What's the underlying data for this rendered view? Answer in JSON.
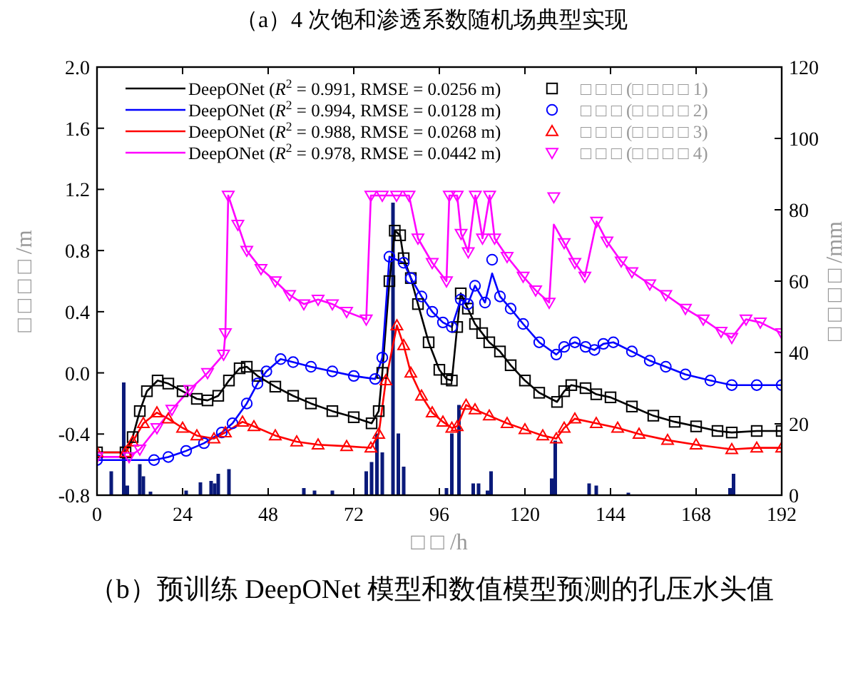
{
  "chart_data": {
    "type": "line",
    "title": "（a）4 次饱和渗透系数随机场典型实现",
    "xlabel": "□ □ /h",
    "ylabel": "□ □ □ □ /m",
    "y2label": "□ □ □ □ /mm",
    "annotations": [
      "（b）预训练 DeepONet 模型和数值模型预测的孔压水头值"
    ],
    "xlim": [
      0,
      192
    ],
    "xticks": [
      0,
      24,
      48,
      72,
      96,
      120,
      144,
      168,
      192
    ],
    "ylim": [
      -0.8,
      2.0
    ],
    "yticks": [
      -0.8,
      -0.4,
      {
        "value": 0,
        "label": "0.0"
      },
      0.4,
      0.8,
      1.2,
      1.6,
      {
        "value": 2,
        "label": "2.0"
      }
    ],
    "y2lim": [
      0,
      120
    ],
    "y2ticks": [
      0,
      20,
      40,
      60,
      80,
      100,
      120
    ],
    "legend": "top",
    "line_style": "solid",
    "series": [
      {
        "type": "bar",
        "axis": "y2",
        "color": "#0a1a7a",
        "x": [
          4,
          7.5,
          8.5,
          12,
          13,
          15,
          25,
          29,
          32,
          33,
          34,
          37,
          58,
          61,
          66,
          75.5,
          77,
          78.5,
          80,
          83,
          84.5,
          86,
          98,
          99.5,
          101.5,
          105.5,
          107,
          109.5,
          110.5,
          127.5,
          128.5,
          138,
          140,
          149,
          177.5,
          178.5
        ],
        "values": [
          6.7,
          31.6,
          2.7,
          8.7,
          5.3,
          1,
          1.3,
          3.6,
          4,
          3.3,
          6,
          7.3,
          2,
          1.3,
          1.3,
          6.7,
          9.3,
          17.3,
          12,
          82,
          17.3,
          8,
          2,
          17.3,
          25.3,
          3.3,
          3.3,
          1.3,
          6.7,
          4.7,
          15.3,
          3.3,
          2.7,
          0.7,
          2,
          6
        ]
      },
      {
        "name": "DeepONet (*R*$^{2}$ = 0.991, RMSE = 0.0256 m)",
        "color": "#000000",
        "x": [
          0,
          8,
          10,
          12,
          14,
          17,
          20,
          24,
          28,
          31,
          34,
          37,
          40,
          42,
          45,
          50,
          55,
          60,
          66,
          72,
          77,
          79,
          80,
          82,
          83.5,
          85,
          86,
          88,
          90,
          93,
          96,
          98,
          99.5,
          101,
          102,
          104,
          106,
          108,
          110,
          113,
          116,
          120,
          124,
          129,
          131,
          133,
          137,
          140,
          144,
          150,
          156,
          162,
          168,
          174,
          178,
          185,
          192
        ],
        "values": [
          -0.52,
          -0.52,
          -0.42,
          -0.25,
          -0.12,
          -0.05,
          -0.07,
          -0.12,
          -0.17,
          -0.18,
          -0.15,
          -0.05,
          0.03,
          0.04,
          -0.02,
          -0.09,
          -0.15,
          -0.2,
          -0.25,
          -0.29,
          -0.33,
          -0.25,
          0.0,
          0.6,
          0.93,
          0.9,
          0.75,
          0.62,
          0.45,
          0.2,
          0.02,
          -0.04,
          -0.05,
          0.3,
          0.52,
          0.42,
          0.32,
          0.26,
          0.2,
          0.14,
          0.05,
          -0.05,
          -0.13,
          -0.19,
          -0.12,
          -0.08,
          -0.1,
          -0.14,
          -0.16,
          -0.22,
          -0.28,
          -0.32,
          -0.35,
          -0.38,
          -0.39,
          -0.38,
          -0.38
        ]
      },
      {
        "type": "scatter",
        "marker": "square",
        "name": "□ □ □ (□ □ □ □ 1)",
        "color": "#000000",
        "x": [
          0,
          8,
          10,
          12,
          14,
          17,
          20,
          24,
          28,
          31,
          34,
          37,
          40,
          42,
          45,
          50,
          55,
          60,
          66,
          72,
          77,
          79,
          80,
          82,
          83.5,
          85,
          86,
          88,
          90,
          93,
          96,
          98,
          99.5,
          101,
          102,
          104,
          106,
          108,
          110,
          113,
          116,
          120,
          124,
          129,
          131,
          133,
          137,
          140,
          144,
          150,
          156,
          162,
          168,
          174,
          178,
          185,
          192
        ],
        "values": [
          -0.52,
          -0.52,
          -0.42,
          -0.25,
          -0.12,
          -0.05,
          -0.07,
          -0.12,
          -0.17,
          -0.18,
          -0.15,
          -0.05,
          0.03,
          0.04,
          -0.02,
          -0.09,
          -0.15,
          -0.2,
          -0.25,
          -0.29,
          -0.33,
          -0.25,
          0.0,
          0.6,
          0.93,
          0.9,
          0.75,
          0.62,
          0.45,
          0.2,
          0.02,
          -0.04,
          -0.05,
          0.3,
          0.52,
          0.42,
          0.32,
          0.26,
          0.2,
          0.14,
          0.05,
          -0.05,
          -0.13,
          -0.19,
          -0.12,
          -0.08,
          -0.1,
          -0.14,
          -0.16,
          -0.22,
          -0.28,
          -0.32,
          -0.35,
          -0.38,
          -0.39,
          -0.38,
          -0.38
        ]
      },
      {
        "name": "DeepONet (*R*$^{2}$ = 0.994, RMSE = 0.0128 m)",
        "color": "#0000ff",
        "x": [
          0,
          16,
          20,
          25,
          30,
          35,
          38,
          42,
          45,
          47.5,
          51.5,
          55,
          60,
          66,
          72,
          78,
          80,
          82,
          86,
          88,
          91,
          94,
          97,
          99.5,
          102,
          104,
          106,
          108.8,
          110.8,
          113,
          116,
          119.5,
          124,
          128.8,
          131,
          134,
          137,
          139.5,
          142,
          144.8,
          150,
          155,
          159.5,
          165,
          172,
          178,
          185,
          192
        ],
        "values": [
          -0.57,
          -0.57,
          -0.55,
          -0.51,
          -0.46,
          -0.39,
          -0.33,
          -0.2,
          -0.07,
          0.01,
          0.09,
          0.07,
          0.04,
          0.01,
          -0.02,
          -0.04,
          0.1,
          0.76,
          0.72,
          0.62,
          0.5,
          0.4,
          0.33,
          0.3,
          0.48,
          0.45,
          0.57,
          0.46,
          0.65,
          0.5,
          0.42,
          0.32,
          0.2,
          0.12,
          0.17,
          0.2,
          0.17,
          0.15,
          0.19,
          0.2,
          0.14,
          0.08,
          0.04,
          -0.01,
          -0.05,
          -0.08,
          -0.08,
          -0.08
        ]
      },
      {
        "type": "scatter",
        "marker": "circle",
        "name": "□ □ □ (□ □ □ □ 2)",
        "color": "#0000ff",
        "x": [
          0,
          16,
          20,
          25,
          30,
          35,
          38,
          42,
          45,
          47.5,
          51.5,
          55,
          60,
          66,
          72,
          78,
          80,
          82,
          86,
          88,
          91,
          94,
          97,
          99.5,
          102,
          104,
          106,
          108.8,
          110.8,
          113,
          116,
          119.5,
          124,
          128.8,
          131,
          134,
          137,
          139.5,
          142,
          144.8,
          150,
          155,
          159.5,
          165,
          172,
          178,
          185,
          192
        ],
        "values": [
          -0.57,
          -0.57,
          -0.55,
          -0.51,
          -0.46,
          -0.39,
          -0.33,
          -0.2,
          -0.07,
          0.01,
          0.09,
          0.07,
          0.04,
          0.01,
          -0.02,
          -0.04,
          0.1,
          0.76,
          0.72,
          0.62,
          0.5,
          0.4,
          0.33,
          0.3,
          0.48,
          0.45,
          0.57,
          0.46,
          0.74,
          0.5,
          0.42,
          0.32,
          0.2,
          0.12,
          0.17,
          0.2,
          0.17,
          0.15,
          0.19,
          0.2,
          0.14,
          0.08,
          0.04,
          -0.01,
          -0.05,
          -0.08,
          -0.08,
          -0.08
        ]
      },
      {
        "name": "DeepONet (*R*$^{2}$ = 0.988, RMSE = 0.0268 m)",
        "color": "#ff0000",
        "x": [
          0,
          8,
          10,
          13,
          16.8,
          20,
          24,
          28,
          32.8,
          36,
          40.8,
          44,
          50,
          56,
          62,
          70,
          76.8,
          79,
          81,
          84.1,
          86,
          88,
          91,
          94,
          97,
          99.5,
          101,
          103.5,
          106,
          110,
          115,
          120,
          125,
          128.8,
          131,
          134,
          140,
          146,
          152,
          160,
          168,
          178,
          185,
          192
        ],
        "values": [
          -0.52,
          -0.52,
          -0.45,
          -0.33,
          -0.26,
          -0.3,
          -0.36,
          -0.41,
          -0.43,
          -0.39,
          -0.32,
          -0.35,
          -0.41,
          -0.45,
          -0.47,
          -0.48,
          -0.49,
          -0.4,
          -0.05,
          0.31,
          0.18,
          0.0,
          -0.15,
          -0.26,
          -0.32,
          -0.36,
          -0.35,
          -0.21,
          -0.24,
          -0.28,
          -0.33,
          -0.37,
          -0.41,
          -0.43,
          -0.36,
          -0.3,
          -0.33,
          -0.36,
          -0.4,
          -0.44,
          -0.47,
          -0.5,
          -0.49,
          -0.49
        ]
      },
      {
        "type": "scatter",
        "marker": "triangle",
        "name": "□ □ □ (□ □ □ □ 3)",
        "color": "#ff0000",
        "x": [
          0,
          8,
          10,
          13,
          16.8,
          20,
          24,
          28,
          32.8,
          36,
          40.8,
          44,
          50,
          56,
          62,
          70,
          76.8,
          79,
          81,
          84.1,
          86,
          88,
          91,
          94,
          97,
          99.5,
          101,
          103.5,
          106,
          110,
          115,
          120,
          125,
          128.8,
          131,
          134,
          140,
          146,
          152,
          160,
          168,
          178,
          185,
          192
        ],
        "values": [
          -0.52,
          -0.52,
          -0.45,
          -0.33,
          -0.26,
          -0.3,
          -0.36,
          -0.41,
          -0.43,
          -0.39,
          -0.32,
          -0.35,
          -0.41,
          -0.45,
          -0.47,
          -0.48,
          -0.49,
          -0.4,
          -0.05,
          0.31,
          0.18,
          0.0,
          -0.15,
          -0.26,
          -0.32,
          -0.36,
          -0.35,
          -0.21,
          -0.24,
          -0.28,
          -0.33,
          -0.37,
          -0.41,
          -0.43,
          -0.36,
          -0.3,
          -0.33,
          -0.36,
          -0.4,
          -0.44,
          -0.47,
          -0.5,
          -0.49,
          -0.49
        ]
      },
      {
        "name": "DeepONet (*R*$^{2}$ = 0.978, RMSE = 0.0442 m)",
        "color": "#ff00ff",
        "x": [
          0,
          9,
          12,
          16.8,
          21,
          26,
          31,
          35.5,
          36,
          36.8,
          39.5,
          42,
          46,
          50,
          54,
          58,
          62,
          66,
          70,
          75.5,
          76.8,
          80,
          84,
          87.5,
          90,
          94,
          98,
          98.8,
          101,
          102.1,
          104.1,
          106.1,
          108.1,
          110.1,
          111.5,
          115,
          119.5,
          123,
          126.8,
          128.1,
          131,
          134,
          136.8,
          140.1,
          143,
          147,
          150,
          155,
          159.5,
          165,
          170,
          175,
          178,
          182,
          186,
          192
        ],
        "values": [
          -0.55,
          -0.55,
          -0.5,
          -0.36,
          -0.24,
          -0.11,
          0.0,
          0.12,
          0.26,
          1.16,
          0.97,
          0.8,
          0.68,
          0.6,
          0.51,
          0.45,
          0.48,
          0.45,
          0.4,
          0.35,
          1.16,
          1.16,
          1.16,
          1.16,
          0.88,
          0.72,
          0.6,
          1.16,
          1.16,
          0.91,
          0.79,
          1.16,
          0.88,
          1.16,
          0.88,
          0.76,
          0.63,
          0.54,
          0.46,
          0.97,
          0.85,
          0.72,
          0.63,
          0.99,
          0.86,
          0.73,
          0.66,
          0.58,
          0.51,
          0.42,
          0.35,
          0.27,
          0.23,
          0.35,
          0.33,
          0.26
        ]
      },
      {
        "type": "scatter",
        "marker": "triangle-down",
        "name": "□ □ □ (□ □ □ □ 4)",
        "color": "#ff00ff",
        "x": [
          0,
          9,
          12,
          16.8,
          21,
          26,
          31,
          35.5,
          36,
          36.8,
          39.5,
          42,
          46,
          50,
          54,
          58,
          62,
          66,
          70,
          75.5,
          76.8,
          80,
          84,
          87.5,
          90,
          94,
          98,
          98.8,
          101,
          102.1,
          104.1,
          106.1,
          108.1,
          110.1,
          111.5,
          115,
          119.5,
          123,
          126.8,
          128.1,
          131,
          134,
          136.8,
          140.1,
          143,
          147,
          150,
          155,
          159.5,
          165,
          170,
          175,
          178,
          182,
          186,
          192
        ],
        "values": [
          -0.55,
          -0.55,
          -0.5,
          -0.36,
          -0.24,
          -0.11,
          0.0,
          0.12,
          0.26,
          1.16,
          0.97,
          0.8,
          0.68,
          0.6,
          0.51,
          0.45,
          0.48,
          0.45,
          0.4,
          0.35,
          1.16,
          1.16,
          1.16,
          1.16,
          0.88,
          0.72,
          0.6,
          1.16,
          1.16,
          0.91,
          0.79,
          1.16,
          0.88,
          1.16,
          0.88,
          0.76,
          0.63,
          0.54,
          0.46,
          1.15,
          0.85,
          0.72,
          0.63,
          0.99,
          0.86,
          0.73,
          0.66,
          0.58,
          0.51,
          0.42,
          0.35,
          0.27,
          0.23,
          0.35,
          0.33,
          0.26
        ]
      }
    ]
  }
}
